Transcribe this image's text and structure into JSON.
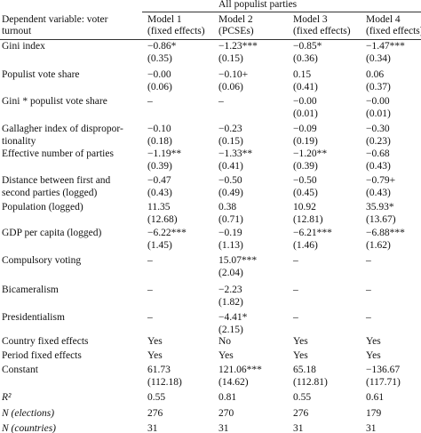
{
  "table": {
    "spanner": "All populist parties",
    "stub_head": [
      "Dependent variable: voter",
      "turnout"
    ],
    "models": [
      {
        "name": "Model 1",
        "method": "(fixed effects)"
      },
      {
        "name": "Model 2",
        "method": "(PCSEs)"
      },
      {
        "name": "Model 3",
        "method": "(fixed effects)"
      },
      {
        "name": "Model 4",
        "method": "(fixed effects)"
      }
    ],
    "rows": [
      {
        "label": [
          "Gini index"
        ],
        "cells": [
          [
            "−0.86*",
            "(0.35)"
          ],
          [
            "−1.23***",
            "(0.15)"
          ],
          [
            "−0.85*",
            "(0.36)"
          ],
          [
            "−1.47***",
            "(0.34)"
          ]
        ]
      },
      {
        "label": [
          "Populist vote share"
        ],
        "cells": [
          [
            "−0.00",
            "(0.06)"
          ],
          [
            "−0.10+",
            "(0.06)"
          ],
          [
            "0.15",
            "(0.41)"
          ],
          [
            "0.06",
            "(0.37)"
          ]
        ]
      },
      {
        "label": [
          "Gini * populist vote share"
        ],
        "cells": [
          [
            "–"
          ],
          [
            "–"
          ],
          [
            "−0.00",
            "(0.01)"
          ],
          [
            "−0.00",
            "(0.01)"
          ]
        ]
      },
      {
        "label": [
          "Gallagher index of dispropor-",
          "tionality"
        ],
        "cells": [
          [
            "−0.10",
            "(0.18)"
          ],
          [
            "−0.23",
            "(0.15)"
          ],
          [
            "−0.09",
            "(0.19)"
          ],
          [
            "−0.30",
            "(0.23)"
          ]
        ]
      },
      {
        "label": [
          "Effective number of parties"
        ],
        "cells": [
          [
            "−1.19**",
            "(0.39)"
          ],
          [
            "−1.33**",
            "(0.41)"
          ],
          [
            "−1.20**",
            "(0.39)"
          ],
          [
            "−0.68",
            "(0.43)"
          ]
        ]
      },
      {
        "label": [
          "Distance between first and",
          "second parties (logged)"
        ],
        "cells": [
          [
            "−0.47",
            "(0.43)"
          ],
          [
            "−0.50",
            "(0.49)"
          ],
          [
            "−0.50",
            "(0.45)"
          ],
          [
            "−0.79+",
            "(0.43)"
          ]
        ]
      },
      {
        "label": [
          "Population (logged)"
        ],
        "cells": [
          [
            "11.35",
            "(12.68)"
          ],
          [
            "0.38",
            "(0.71)"
          ],
          [
            "10.92",
            "(12.81)"
          ],
          [
            "35.93*",
            "(13.67)"
          ]
        ]
      },
      {
        "label": [
          "GDP per capita (logged)"
        ],
        "cells": [
          [
            "−6.22***",
            "(1.45)"
          ],
          [
            "−0.19",
            "(1.13)"
          ],
          [
            "−6.21***",
            "(1.46)"
          ],
          [
            "−6.88***",
            "(1.62)"
          ]
        ]
      },
      {
        "label": [
          "Compulsory voting"
        ],
        "cells": [
          [
            "–"
          ],
          [
            "15.07***",
            "(2.04)"
          ],
          [
            "–"
          ],
          [
            "–"
          ]
        ]
      },
      {
        "label": [
          "Bicameralism"
        ],
        "cells": [
          [
            "–"
          ],
          [
            "−2.23",
            "(1.82)"
          ],
          [
            "–"
          ],
          [
            "–"
          ]
        ]
      },
      {
        "label": [
          "Presidentialism"
        ],
        "cells": [
          [
            "–"
          ],
          [
            "−4.41*",
            "(2.15)"
          ],
          [
            "–"
          ],
          [
            "–"
          ]
        ]
      },
      {
        "label": [
          "Country fixed effects"
        ],
        "cells": [
          [
            "Yes"
          ],
          [
            "No"
          ],
          [
            "Yes"
          ],
          [
            "Yes"
          ]
        ]
      },
      {
        "label": [
          "Period fixed effects"
        ],
        "cells": [
          [
            "Yes"
          ],
          [
            "Yes"
          ],
          [
            "Yes"
          ],
          [
            "Yes"
          ]
        ]
      },
      {
        "label": [
          "Constant"
        ],
        "cells": [
          [
            "61.73",
            "(112.18)"
          ],
          [
            "121.06***",
            "(14.62)"
          ],
          [
            "65.18",
            "(112.81)"
          ],
          [
            "−136.67",
            "(117.71)"
          ]
        ]
      },
      {
        "label": [
          "R²"
        ],
        "italic": true,
        "cells": [
          [
            "0.55"
          ],
          [
            "0.81"
          ],
          [
            "0.55"
          ],
          [
            "0.61"
          ]
        ]
      },
      {
        "label": [
          "N (elections)"
        ],
        "italic": true,
        "cells": [
          [
            "276"
          ],
          [
            "270"
          ],
          [
            "276"
          ],
          [
            "179"
          ]
        ]
      },
      {
        "label": [
          "N (countries)"
        ],
        "italic": true,
        "cells": [
          [
            "31"
          ],
          [
            "31"
          ],
          [
            "31"
          ],
          [
            "31"
          ]
        ]
      }
    ]
  }
}
